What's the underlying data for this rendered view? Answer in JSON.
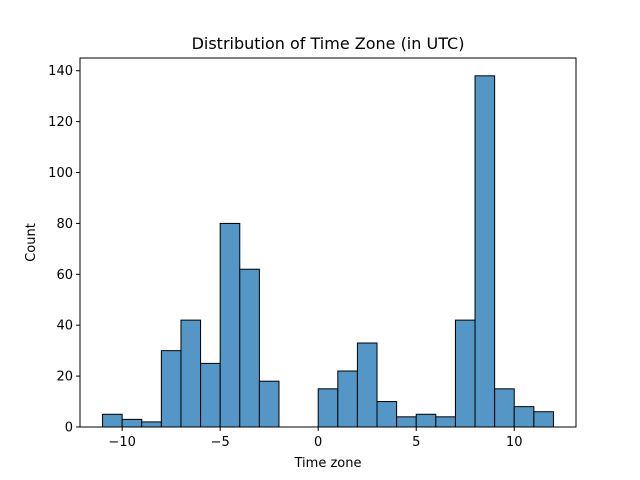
{
  "chart_data": {
    "type": "histogram",
    "title": "Distribution of Time Zone (in UTC)",
    "xlabel": "Time zone",
    "ylabel": "Count",
    "xlim": [
      -12.15,
      13.15
    ],
    "ylim": [
      0,
      145
    ],
    "xticks": [
      -10,
      -5,
      0,
      5,
      10
    ],
    "xtick_labels": [
      "−10",
      "−5",
      "0",
      "5",
      "10"
    ],
    "yticks": [
      0,
      20,
      40,
      60,
      80,
      100,
      120,
      140
    ],
    "bar_color": "#5497c7",
    "edge_color": "#000000",
    "bins": [
      {
        "x0": -11,
        "x1": -10,
        "count": 5
      },
      {
        "x0": -10,
        "x1": -9,
        "count": 3
      },
      {
        "x0": -9,
        "x1": -8,
        "count": 2
      },
      {
        "x0": -8,
        "x1": -7,
        "count": 30
      },
      {
        "x0": -7,
        "x1": -6,
        "count": 42
      },
      {
        "x0": -6,
        "x1": -5,
        "count": 25
      },
      {
        "x0": -5,
        "x1": -4,
        "count": 80
      },
      {
        "x0": -4,
        "x1": -3,
        "count": 62
      },
      {
        "x0": -3,
        "x1": -2,
        "count": 18
      },
      {
        "x0": -2,
        "x1": -1,
        "count": 0
      },
      {
        "x0": -1,
        "x1": 0,
        "count": 0
      },
      {
        "x0": 0,
        "x1": 1,
        "count": 15
      },
      {
        "x0": 1,
        "x1": 2,
        "count": 22
      },
      {
        "x0": 2,
        "x1": 3,
        "count": 33
      },
      {
        "x0": 3,
        "x1": 4,
        "count": 10
      },
      {
        "x0": 4,
        "x1": 5,
        "count": 4
      },
      {
        "x0": 5,
        "x1": 6,
        "count": 5
      },
      {
        "x0": 6,
        "x1": 7,
        "count": 4
      },
      {
        "x0": 7,
        "x1": 8,
        "count": 42
      },
      {
        "x0": 8,
        "x1": 9,
        "count": 138
      },
      {
        "x0": 9,
        "x1": 10,
        "count": 15
      },
      {
        "x0": 10,
        "x1": 11,
        "count": 8
      },
      {
        "x0": 11,
        "x1": 12,
        "count": 6
      }
    ]
  }
}
